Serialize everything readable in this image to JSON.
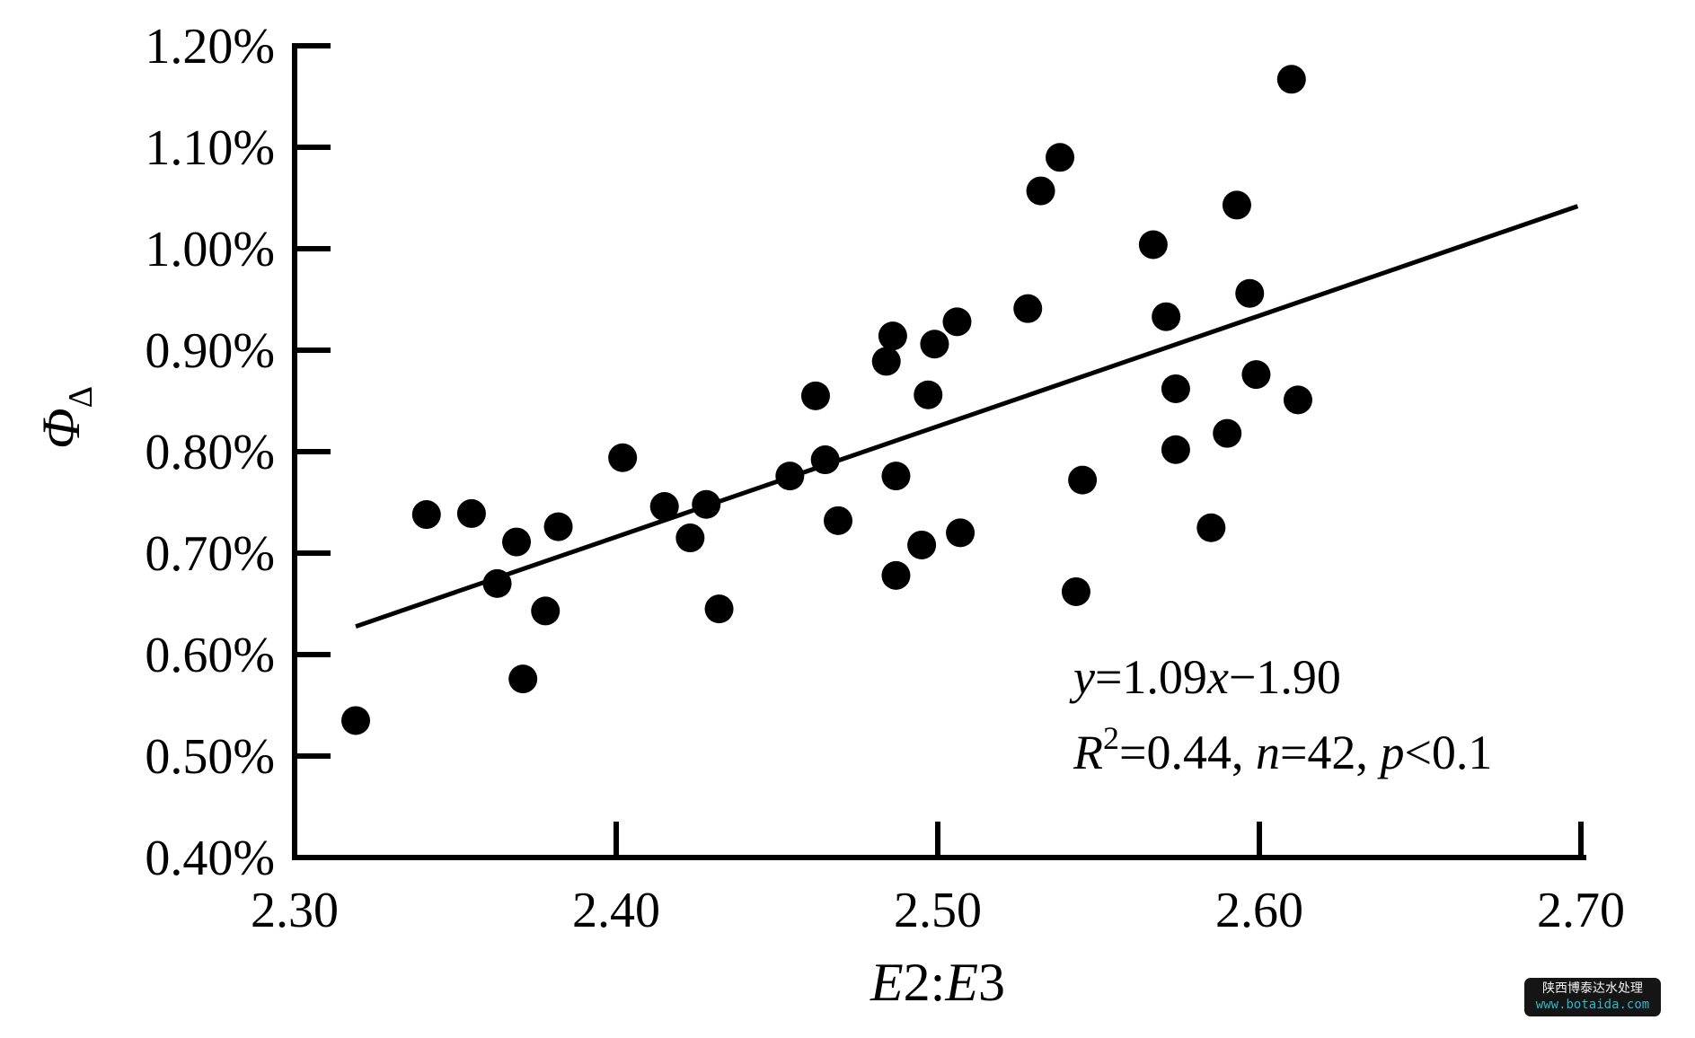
{
  "watermark": {
    "line1": "陕西博泰达水处理",
    "line2": "www.botaida.com",
    "background": "#151515",
    "line1_color": "#f2f2f2",
    "line2_color": "#2ab7c9"
  },
  "chart_data": {
    "type": "scatter",
    "title": "",
    "xlabel_parts": [
      {
        "text": "E",
        "italic": true
      },
      {
        "text": "2:",
        "italic": false
      },
      {
        "text": "E",
        "italic": true
      },
      {
        "text": "3",
        "italic": false
      }
    ],
    "ylabel": {
      "base": "Φ",
      "subscript": "Δ"
    },
    "xlim": [
      2.3,
      2.7
    ],
    "ylim_percent": [
      0.4,
      1.2
    ],
    "grid": false,
    "legend": null,
    "marker_color": "#000000",
    "axis_color": "#000000",
    "x_ticks": [
      {
        "value": 2.3,
        "label": "2.30"
      },
      {
        "value": 2.4,
        "label": "2.40"
      },
      {
        "value": 2.5,
        "label": "2.50"
      },
      {
        "value": 2.6,
        "label": "2.60"
      },
      {
        "value": 2.7,
        "label": "2.70"
      }
    ],
    "y_ticks": [
      {
        "value": 0.4,
        "label": "0.40%"
      },
      {
        "value": 0.5,
        "label": "0.50%"
      },
      {
        "value": 0.6,
        "label": "0.60%"
      },
      {
        "value": 0.7,
        "label": "0.70%"
      },
      {
        "value": 0.8,
        "label": "0.80%"
      },
      {
        "value": 0.9,
        "label": "0.90%"
      },
      {
        "value": 1.0,
        "label": "1.00%"
      },
      {
        "value": 1.1,
        "label": "1.10%"
      },
      {
        "value": 1.2,
        "label": "1.20%"
      }
    ],
    "points": [
      [
        2.319,
        0.535
      ],
      [
        2.341,
        0.738
      ],
      [
        2.355,
        0.739
      ],
      [
        2.363,
        0.67
      ],
      [
        2.369,
        0.711
      ],
      [
        2.371,
        0.576
      ],
      [
        2.378,
        0.643
      ],
      [
        2.382,
        0.726
      ],
      [
        2.402,
        0.794
      ],
      [
        2.415,
        0.746
      ],
      [
        2.423,
        0.715
      ],
      [
        2.428,
        0.748
      ],
      [
        2.432,
        0.645
      ],
      [
        2.454,
        0.776
      ],
      [
        2.462,
        0.855
      ],
      [
        2.465,
        0.792
      ],
      [
        2.469,
        0.732
      ],
      [
        2.487,
        0.776
      ],
      [
        2.487,
        0.678
      ],
      [
        2.495,
        0.708
      ],
      [
        2.507,
        0.72
      ],
      [
        2.497,
        0.856
      ],
      [
        2.538,
        1.09
      ],
      [
        2.532,
        1.057
      ],
      [
        2.567,
        1.004
      ],
      [
        2.528,
        0.941
      ],
      [
        2.571,
        0.933
      ],
      [
        2.506,
        0.928
      ],
      [
        2.499,
        0.906
      ],
      [
        2.486,
        0.914
      ],
      [
        2.484,
        0.889
      ],
      [
        2.61,
        1.167
      ],
      [
        2.593,
        1.043
      ],
      [
        2.597,
        0.956
      ],
      [
        2.599,
        0.876
      ],
      [
        2.612,
        0.851
      ],
      [
        2.574,
        0.862
      ],
      [
        2.59,
        0.818
      ],
      [
        2.574,
        0.802
      ],
      [
        2.545,
        0.772
      ],
      [
        2.585,
        0.725
      ],
      [
        2.543,
        0.662
      ]
    ],
    "trendline": {
      "equation": "y=1.09x−1.90",
      "slope": 1.09,
      "intercept": -1.9,
      "x_start": 2.319,
      "x_end": 2.699
    },
    "stats": {
      "r_squared": 0.44,
      "n": 42,
      "p": "<0.1"
    },
    "annotation": {
      "line1_parts": [
        {
          "text": "y",
          "italic": true
        },
        {
          "text": "=1.09",
          "italic": false
        },
        {
          "text": "x",
          "italic": true
        },
        {
          "text": "−1.90",
          "italic": false
        }
      ],
      "line2_parts": [
        {
          "text": "R",
          "italic": true
        },
        {
          "text": "2",
          "italic": false,
          "sup": true
        },
        {
          "text": "=0.44, ",
          "italic": false
        },
        {
          "text": "n",
          "italic": true
        },
        {
          "text": "=42, ",
          "italic": false
        },
        {
          "text": "p",
          "italic": true
        },
        {
          "text": "<0.1",
          "italic": false
        }
      ]
    }
  }
}
